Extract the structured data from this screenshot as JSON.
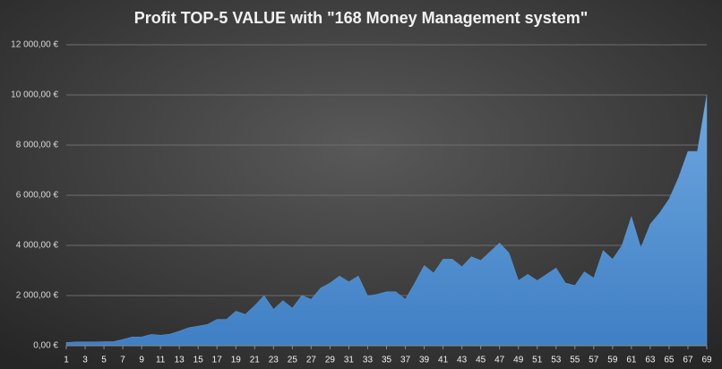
{
  "chart_data": {
    "type": "area",
    "title": "Profit TOP-5 VALUE with \"168 Money Management system\"",
    "x": [
      1,
      2,
      3,
      4,
      5,
      6,
      7,
      8,
      9,
      10,
      11,
      12,
      13,
      14,
      15,
      16,
      17,
      18,
      19,
      20,
      21,
      22,
      23,
      24,
      25,
      26,
      27,
      28,
      29,
      30,
      31,
      32,
      33,
      34,
      35,
      36,
      37,
      38,
      39,
      40,
      41,
      42,
      43,
      44,
      45,
      46,
      47,
      48,
      49,
      50,
      51,
      52,
      53,
      54,
      55,
      56,
      57,
      58,
      59,
      60,
      61,
      62,
      63,
      64,
      65,
      66,
      67,
      68,
      69
    ],
    "values": [
      130,
      150,
      150,
      150,
      160,
      160,
      250,
      350,
      350,
      450,
      420,
      460,
      580,
      720,
      780,
      850,
      1050,
      1050,
      1380,
      1250,
      1600,
      2000,
      1450,
      1800,
      1500,
      2000,
      1850,
      2300,
      2500,
      2780,
      2550,
      2780,
      1980,
      2050,
      2150,
      2150,
      1850,
      2500,
      3200,
      2900,
      3450,
      3450,
      3150,
      3550,
      3400,
      3750,
      4100,
      3700,
      2600,
      2850,
      2600,
      2850,
      3100,
      2500,
      2400,
      2950,
      2700,
      3800,
      3450,
      4000,
      5150,
      3900,
      4850,
      5300,
      5850,
      6700,
      7750,
      7750,
      10000
    ],
    "color": "#5b9bd5",
    "xlim": [
      1,
      69
    ],
    "xticks": [
      1,
      3,
      5,
      7,
      9,
      11,
      13,
      15,
      17,
      19,
      21,
      23,
      25,
      27,
      29,
      31,
      33,
      35,
      37,
      39,
      41,
      43,
      45,
      47,
      49,
      51,
      53,
      55,
      57,
      59,
      61,
      63,
      65,
      67,
      69
    ],
    "ylim": [
      0,
      12000
    ],
    "yticks": [
      {
        "value": 0,
        "label": "0,00 €"
      },
      {
        "value": 2000,
        "label": "2 000,00 €"
      },
      {
        "value": 4000,
        "label": "4 000,00 €"
      },
      {
        "value": 6000,
        "label": "6 000,00 €"
      },
      {
        "value": 8000,
        "label": "8 000,00 €"
      },
      {
        "value": 10000,
        "label": "10 000,00 €"
      },
      {
        "value": 12000,
        "label": "12 000,00 €"
      }
    ],
    "grid": true
  }
}
